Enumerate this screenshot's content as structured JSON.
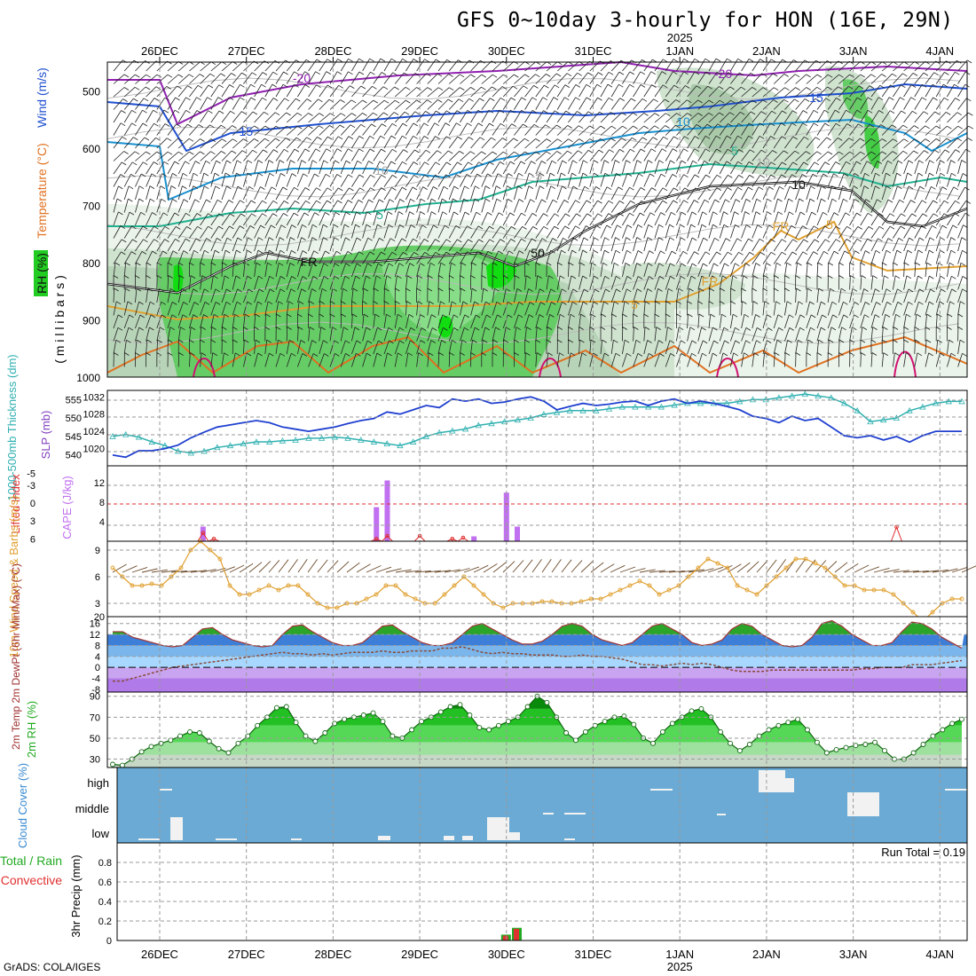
{
  "title": "GFS 0~10day 3-hourly for HON (16E, 29N)",
  "footer": "GrADS: COLA/IGES",
  "colors": {
    "grid": "#9a9a9a",
    "frame": "#000000",
    "rh_green": "#22cc22",
    "cloud_blue": "#6aaad4",
    "cape": "#c070f0",
    "lifted": "#e03030",
    "slp": "#2040d0",
    "thick": "#30b0b0",
    "wind": "#e0a030"
  },
  "time_axis": {
    "ticks": [
      "26DEC",
      "27DEC",
      "28DEC",
      "29DEC",
      "30DEC",
      "31DEC",
      "1JAN",
      "2JAN",
      "3JAN",
      "4JAN"
    ],
    "year_label": "2025"
  },
  "chart_data": [
    {
      "type": "heatmap",
      "panel": "upper-air",
      "ylabel_parts": [
        "RH (%)",
        "Temperature (°C)",
        "Wind (m/s)"
      ],
      "ylabel_unit": "( m i l l i b a r s )",
      "yticks": [
        "500",
        "600",
        "700",
        "800",
        "900",
        "1000"
      ],
      "ylim": [
        1000,
        450
      ],
      "contour_labels": [
        "-20",
        "-20",
        "-15",
        "15",
        "10",
        "10",
        "-5",
        "5",
        "5",
        "5",
        "5",
        "FR",
        "FR",
        "FR",
        "50",
        "10",
        "10"
      ]
    },
    {
      "type": "line",
      "panel": "slp-thickness",
      "ylabel_left": "1000-500mb Thickness (dm)",
      "ylabel_right": "SLP (mb)",
      "yticks_left": [
        "540",
        "545",
        "550",
        "555"
      ],
      "yticks_right": [
        "1020",
        "1024",
        "1028",
        "1032"
      ],
      "series": [
        {
          "name": "SLP (mb)",
          "values": [
            1018.5,
            1018,
            1019.5,
            1019.5,
            1020,
            1020.8,
            1022.5,
            1023.8,
            1025,
            1025.5,
            1026,
            1026.5,
            1026,
            1025,
            1024.5,
            1024,
            1024.5,
            1025,
            1025.8,
            1026.5,
            1027,
            1028.5,
            1028,
            1029,
            1030,
            1029.5,
            1031.5,
            1031,
            1031.5,
            1030.5,
            1030.8,
            1031.5,
            1032,
            1031,
            1029,
            1029.8,
            1030.5,
            1030,
            1030.3,
            1030.8,
            1031,
            1030,
            1031,
            1031.5,
            1030.5,
            1031,
            1030.5,
            1029.8,
            1029,
            1027.5,
            1027,
            1026,
            1027.5,
            1026.5,
            1027,
            1025,
            1023,
            1022.5,
            1023,
            1022,
            1022.8,
            1021.5,
            1023,
            1024,
            1024,
            1024
          ]
        },
        {
          "name": "Thickness (dm)",
          "values": [
            545,
            545.5,
            544.8,
            543.5,
            542.5,
            541,
            540.5,
            541,
            542,
            542.5,
            543,
            543.5,
            543.5,
            543.8,
            544,
            544.5,
            544.5,
            544.8,
            544.5,
            544,
            543.5,
            543,
            542.5,
            543.5,
            545,
            546,
            546.5,
            547,
            548,
            548.5,
            549,
            549.5,
            550,
            551,
            551.5,
            552,
            552,
            552,
            552.5,
            553,
            553,
            553,
            553,
            553.5,
            554,
            554,
            554,
            554,
            554.5,
            555,
            555,
            555.5,
            556,
            556.5,
            556,
            555.5,
            554,
            552,
            549,
            549.5,
            550,
            552,
            553,
            554,
            554.5,
            554.5
          ]
        }
      ]
    },
    {
      "type": "bar",
      "panel": "cape-lifted",
      "ylabel_left": "Lifted Index",
      "ylabel_right": "CAPE (J/kg)",
      "yticks_left": [
        "-5",
        "-3",
        "0",
        "3",
        "6"
      ],
      "yticks_right": [
        "4",
        "8",
        "12"
      ],
      "cape_bars": [
        {
          "day": 0.5,
          "value": 3
        },
        {
          "day": 2.5,
          "value": 7
        },
        {
          "day": 2.625,
          "value": 12.5
        },
        {
          "day": 3.625,
          "value": 1
        },
        {
          "day": 4.0,
          "value": 10
        },
        {
          "day": 4.125,
          "value": 3
        }
      ],
      "lifted_index": [
        {
          "day": 0.5,
          "value": 5
        },
        {
          "day": 0.625,
          "value": 6
        },
        {
          "day": 2.5,
          "value": 6
        },
        {
          "day": 2.625,
          "value": 5.5
        },
        {
          "day": 3.0,
          "value": 5.5
        },
        {
          "day": 3.375,
          "value": 6
        },
        {
          "day": 3.5,
          "value": 5.8
        },
        {
          "day": 8.5,
          "value": 4
        }
      ]
    },
    {
      "type": "line",
      "panel": "10m-wind",
      "ylabel": "10m Wind Speed & Barbs (m/s)",
      "yticks": [
        "3",
        "6",
        "9"
      ],
      "ylim": [
        0,
        10
      ],
      "values": [
        7,
        6,
        5,
        5,
        5.2,
        5,
        6,
        7,
        9,
        10,
        9,
        8,
        5,
        4,
        4,
        4.5,
        5,
        4.5,
        5,
        5,
        4,
        3,
        2.5,
        2.5,
        3,
        3,
        3.5,
        4,
        5,
        5,
        4,
        3.5,
        3,
        3,
        4,
        5,
        6,
        5,
        4,
        3,
        2.5,
        3,
        3,
        3,
        3.2,
        3.2,
        3,
        3,
        3.2,
        3.5,
        3.5,
        4,
        4.5,
        5,
        5.5,
        5,
        4,
        4.5,
        5,
        6,
        7,
        8,
        7.5,
        7,
        5,
        4.5,
        4,
        5,
        6,
        7,
        8,
        8,
        7.5,
        7,
        6,
        5,
        5,
        4.5,
        4.5,
        4.5,
        4,
        3,
        2,
        1,
        2,
        3,
        3.5,
        3.5
      ]
    },
    {
      "type": "area",
      "panel": "2m-temp",
      "ylabel": "2m Temp 2m DewPt (6hr Min/Max) (°C)",
      "yticks": [
        "-8",
        "-4",
        "0",
        "4",
        "8",
        "12",
        "16"
      ],
      "ylim": [
        -8,
        18
      ],
      "series": [
        {
          "name": "2m Temp",
          "values": [
            13,
            13,
            11,
            10,
            9,
            8,
            7.5,
            8,
            11,
            14,
            14.5,
            12,
            10,
            9,
            8,
            7.5,
            8,
            12,
            15,
            15.5,
            13,
            11,
            9,
            8,
            8,
            9,
            12,
            15,
            15.5,
            13,
            11,
            9,
            8,
            8,
            9,
            12,
            15,
            16,
            14,
            12,
            10,
            8.5,
            8.5,
            9.5,
            12,
            15,
            16,
            15,
            12,
            10,
            9,
            8,
            9,
            12,
            15,
            16,
            14,
            12,
            9,
            8,
            8.5,
            10,
            14,
            16,
            15,
            12,
            10,
            8,
            7.5,
            8,
            11,
            16,
            17,
            15,
            12,
            10,
            8,
            8,
            9,
            13,
            16.5,
            16,
            14,
            11,
            9,
            7
          ]
        },
        {
          "name": "2m DewPt",
          "values": [
            -5,
            -5,
            -4,
            -3,
            -2,
            -1,
            0,
            0.5,
            1,
            1.5,
            2,
            2.5,
            3,
            3.5,
            4,
            4.5,
            5,
            5.5,
            5,
            5,
            4.5,
            5,
            4.5,
            5,
            5.5,
            5.5,
            5.5,
            6,
            5.5,
            5.5,
            6,
            6,
            6,
            7,
            7,
            7.5,
            6.5,
            5.5,
            5,
            5.5,
            5,
            5,
            4.5,
            4.5,
            4.5,
            4,
            4,
            4.5,
            4,
            4,
            3.5,
            3,
            2,
            1,
            1,
            0.5,
            1,
            1.5,
            1,
            1.5,
            1,
            0,
            -1,
            -1.5,
            -1.5,
            -1.5,
            -1,
            -1,
            -1,
            -1,
            -1,
            -1,
            -1,
            -1,
            -1,
            -0.5,
            -0.5,
            0,
            0,
            0,
            1,
            1,
            1,
            1.5,
            2,
            2.5
          ]
        }
      ]
    },
    {
      "type": "area",
      "panel": "2m-rh",
      "ylabel": "2m RH (%)",
      "yticks": [
        "30",
        "50",
        "70",
        "90"
      ],
      "ylim": [
        22,
        92
      ],
      "values": [
        25,
        24,
        30,
        37,
        42,
        45,
        48,
        52,
        56,
        55,
        47,
        40,
        36,
        45,
        52,
        62,
        70,
        79,
        80,
        65,
        52,
        47,
        55,
        64,
        68,
        70,
        72,
        74,
        66,
        52,
        50,
        58,
        66,
        70,
        75,
        80,
        82,
        72,
        60,
        58,
        62,
        66,
        70,
        80,
        90,
        84,
        70,
        55,
        48,
        56,
        62,
        66,
        70,
        71,
        63,
        50,
        45,
        56,
        64,
        70,
        76,
        78,
        70,
        56,
        45,
        38,
        44,
        52,
        58,
        62,
        65,
        68,
        58,
        46,
        36,
        39,
        41,
        43,
        44,
        46,
        38,
        30,
        30,
        36,
        44,
        52,
        58,
        64,
        68
      ]
    },
    {
      "type": "heatmap",
      "panel": "cloud-cover",
      "ylabel": "Cloud Cover (%)",
      "yticks": [
        "high",
        "middle",
        "low"
      ]
    },
    {
      "type": "bar",
      "panel": "precip",
      "ylabel": "3hr Precip (mm)",
      "legend": [
        "Total / Rain",
        "Convective"
      ],
      "yticks": [
        "0",
        "0.2",
        "0.4",
        "0.6",
        "0.8"
      ],
      "ylim": [
        0,
        1
      ],
      "annotation": "Run Total = 0.19",
      "values": [
        {
          "day": 4.0,
          "total": 0.06,
          "convective": 0.05
        },
        {
          "day": 4.125,
          "total": 0.13,
          "convective": 0.12
        }
      ]
    }
  ]
}
